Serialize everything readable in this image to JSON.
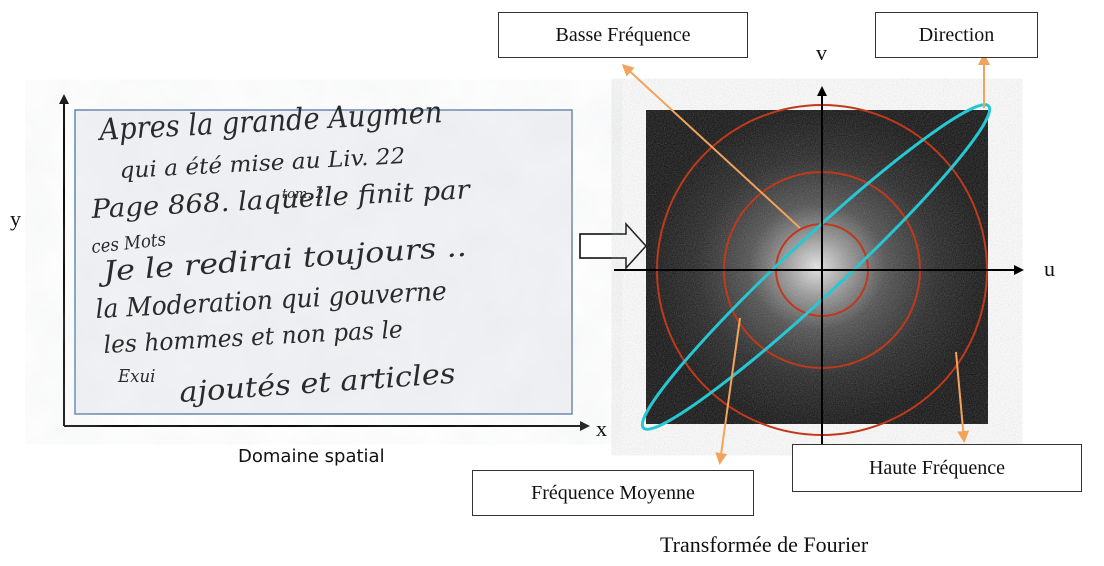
{
  "spatial": {
    "axis_y": "y",
    "axis_x": "x",
    "caption": "Domaine spatial",
    "handwriting_lines": [
      "Apres la grande Augmen",
      "qui a été mise au Liv. 22",
      "Page 868. laquelle finit par",
      "ces Mots",
      "Je le redirai toujours ..",
      "la Moderation qui gouverne",
      "les hommes et non pas le",
      "Exui",
      "ajoutés et articles"
    ],
    "handwriting_note": "tom. 2"
  },
  "fourier": {
    "axis_v": "v",
    "axis_u": "u",
    "caption": "Transformée de Fourier",
    "label_low": "Basse Fréquence",
    "label_direction": "Direction",
    "label_medium": "Fréquence Moyenne",
    "label_high": "Haute Fréquence"
  },
  "colors": {
    "ring": "#c0391b",
    "ellipse": "#27c7d4",
    "arrow": "#f2a35c",
    "spectrum_bg": "#0b0b0b"
  }
}
